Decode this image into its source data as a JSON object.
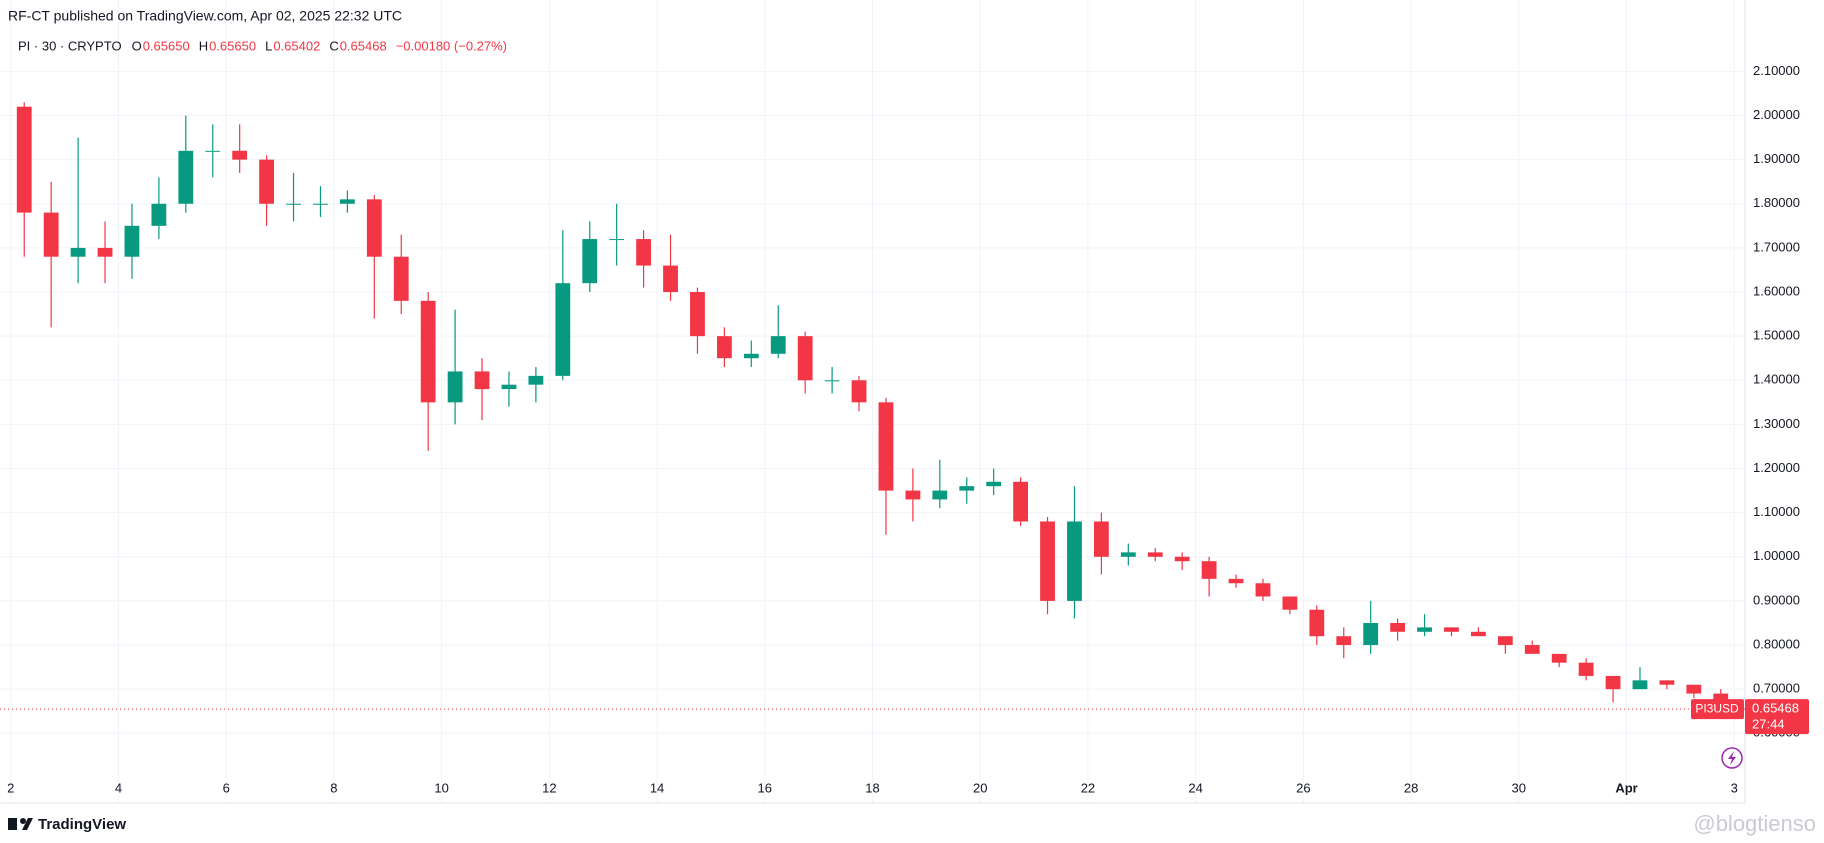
{
  "chart_data": {
    "type": "candlestick",
    "publisher_line": "RF-CT published on TradingView.com, Apr 02, 2025 22:32 UTC",
    "symbol": "PI · 30 · CRYPTO",
    "ohlc_legend": [
      {
        "label": "O",
        "value": "0.65650"
      },
      {
        "label": "H",
        "value": "0.65650"
      },
      {
        "label": "L",
        "value": "0.65402"
      },
      {
        "label": "C",
        "value": "0.65468"
      }
    ],
    "change": "−0.00180 (−0.27%)",
    "ticker": "PI3USD",
    "last_price": 0.65468,
    "countdown": "27:44",
    "brand": "TradingView",
    "watermark": "@blogtienso",
    "up_color": "#089981",
    "down_color": "#f23645",
    "grid": true,
    "open": [
      2.02,
      1.78,
      1.68,
      1.7,
      1.68,
      1.75,
      1.8,
      1.92,
      1.92,
      1.9,
      1.8,
      1.8,
      1.8,
      1.81,
      1.68,
      1.58,
      1.35,
      1.42,
      1.38,
      1.39,
      1.41,
      1.62,
      1.72,
      1.72,
      1.66,
      1.6,
      1.5,
      1.45,
      1.46,
      1.5,
      1.4,
      1.4,
      1.35,
      1.15,
      1.13,
      1.15,
      1.16,
      1.17,
      1.08,
      0.9,
      1.08,
      1.0,
      1.01,
      1.0,
      0.99,
      0.95,
      0.94,
      0.91,
      0.88,
      0.82,
      0.8,
      0.85,
      0.83,
      0.84,
      0.83,
      0.82,
      0.8,
      0.78,
      0.76,
      0.73,
      0.7,
      0.72,
      0.71,
      0.69
    ],
    "high": [
      2.03,
      1.85,
      1.95,
      1.76,
      1.8,
      1.86,
      2.0,
      1.98,
      1.98,
      1.91,
      1.87,
      1.84,
      1.83,
      1.82,
      1.73,
      1.6,
      1.56,
      1.45,
      1.42,
      1.43,
      1.74,
      1.76,
      1.8,
      1.74,
      1.73,
      1.61,
      1.52,
      1.49,
      1.57,
      1.51,
      1.43,
      1.41,
      1.36,
      1.2,
      1.22,
      1.18,
      1.2,
      1.18,
      1.09,
      1.16,
      1.1,
      1.03,
      1.02,
      1.01,
      1.0,
      0.96,
      0.95,
      0.91,
      0.89,
      0.84,
      0.9,
      0.86,
      0.87,
      0.84,
      0.84,
      0.82,
      0.81,
      0.78,
      0.77,
      0.73,
      0.75,
      0.72,
      0.71,
      0.7
    ],
    "low": [
      1.68,
      1.52,
      1.62,
      1.62,
      1.63,
      1.72,
      1.78,
      1.86,
      1.87,
      1.75,
      1.76,
      1.77,
      1.78,
      1.54,
      1.55,
      1.24,
      1.3,
      1.31,
      1.34,
      1.35,
      1.4,
      1.6,
      1.66,
      1.61,
      1.58,
      1.46,
      1.43,
      1.43,
      1.45,
      1.37,
      1.37,
      1.33,
      1.05,
      1.08,
      1.11,
      1.12,
      1.14,
      1.07,
      0.87,
      0.86,
      0.96,
      0.98,
      0.99,
      0.97,
      0.91,
      0.93,
      0.9,
      0.87,
      0.8,
      0.77,
      0.78,
      0.81,
      0.82,
      0.82,
      0.82,
      0.78,
      0.78,
      0.75,
      0.72,
      0.67,
      0.7,
      0.7,
      0.68,
      0.65
    ],
    "close": [
      1.78,
      1.68,
      1.7,
      1.68,
      1.75,
      1.8,
      1.92,
      1.92,
      1.9,
      1.8,
      1.8,
      1.8,
      1.81,
      1.68,
      1.58,
      1.35,
      1.42,
      1.38,
      1.39,
      1.41,
      1.62,
      1.72,
      1.72,
      1.66,
      1.6,
      1.5,
      1.45,
      1.46,
      1.5,
      1.4,
      1.4,
      1.35,
      1.15,
      1.13,
      1.15,
      1.16,
      1.17,
      1.08,
      0.9,
      1.08,
      1.0,
      1.01,
      1.0,
      0.99,
      0.95,
      0.94,
      0.91,
      0.88,
      0.82,
      0.8,
      0.85,
      0.83,
      0.84,
      0.83,
      0.82,
      0.8,
      0.78,
      0.76,
      0.73,
      0.7,
      0.72,
      0.71,
      0.69,
      0.655
    ],
    "xlim": [
      -0.4,
      64.4
    ],
    "xticks": [
      {
        "value": 0,
        "label": "2"
      },
      {
        "value": 4,
        "label": "4"
      },
      {
        "value": 8,
        "label": "6"
      },
      {
        "value": 12,
        "label": "8"
      },
      {
        "value": 16,
        "label": "10"
      },
      {
        "value": 20,
        "label": "12"
      },
      {
        "value": 24,
        "label": "14"
      },
      {
        "value": 28,
        "label": "16"
      },
      {
        "value": 32,
        "label": "18"
      },
      {
        "value": 36,
        "label": "20"
      },
      {
        "value": 40,
        "label": "22"
      },
      {
        "value": 44,
        "label": "24"
      },
      {
        "value": 48,
        "label": "26"
      },
      {
        "value": 52,
        "label": "28"
      },
      {
        "value": 56,
        "label": "30"
      },
      {
        "value": 60,
        "label": "Apr"
      },
      {
        "value": 64,
        "label": "3"
      }
    ],
    "ylim": [
      0.51,
      2.187
    ],
    "yticks": [
      {
        "value": 0.6,
        "label": "0.60000"
      },
      {
        "value": 0.7,
        "label": "0.70000"
      },
      {
        "value": 0.8,
        "label": "0.80000"
      },
      {
        "value": 0.9,
        "label": "0.90000"
      },
      {
        "value": 1.0,
        "label": "1.00000"
      },
      {
        "value": 1.1,
        "label": "1.10000"
      },
      {
        "value": 1.2,
        "label": "1.20000"
      },
      {
        "value": 1.3,
        "label": "1.30000"
      },
      {
        "value": 1.4,
        "label": "1.40000"
      },
      {
        "value": 1.5,
        "label": "1.50000"
      },
      {
        "value": 1.6,
        "label": "1.60000"
      },
      {
        "value": 1.7,
        "label": "1.70000"
      },
      {
        "value": 1.8,
        "label": "1.80000"
      },
      {
        "value": 1.9,
        "label": "1.90000"
      },
      {
        "value": 2.0,
        "label": "2.00000"
      },
      {
        "value": 2.1,
        "label": "2.10000"
      }
    ]
  }
}
